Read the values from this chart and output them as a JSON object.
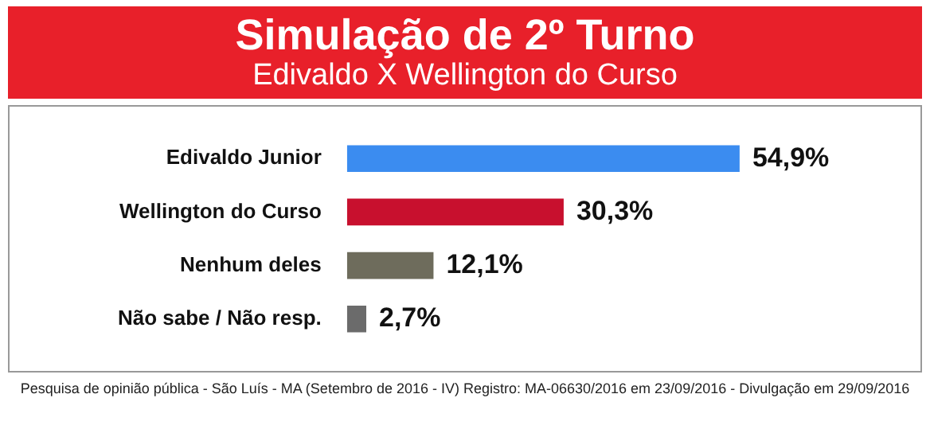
{
  "chart_data": {
    "type": "bar",
    "orientation": "horizontal",
    "title": "Simulação de 2º Turno",
    "subtitle": "Edivaldo X Wellington do Curso",
    "categories": [
      "Edivaldo Junior",
      "Wellington do Curso",
      "Nenhum deles",
      "Não sabe / Não resp."
    ],
    "values": [
      54.9,
      30.3,
      12.1,
      2.7
    ],
    "colors": [
      "#3b8cf0",
      "#c8102e",
      "#6e6c5c",
      "#6b6b6b"
    ],
    "value_labels": [
      "54,9%",
      "30,3%",
      "12,1%",
      "2,7%"
    ],
    "annotations": [
      "Pesquisa de opinião pública - São Luís - MA (Setembro de 2016 - IV) Registro: MA-06630/2016 em 23/09/2016 - Divulgação em 29/09/2016"
    ]
  }
}
